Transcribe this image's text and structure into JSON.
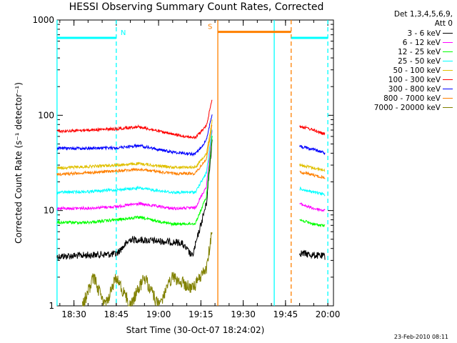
{
  "title": "HESSI Observing Summary Count Rates, Corrected",
  "footer_timestamp": "23-Feb-2010 08:11",
  "legend": {
    "header_line1": "Det 1,3,4,5,6,9,",
    "header_line2": "Att 0"
  },
  "chart_data": {
    "type": "line",
    "title": "HESSI Observing Summary Count Rates, Corrected",
    "xlabel": "Start Time (30-Oct-07 18:24:02)",
    "ylabel": "Corrected Count Rate (s⁻¹ detector⁻¹)",
    "y_scale": "log",
    "ylim": [
      1,
      1000
    ],
    "xlim": [
      "18:24:02",
      "20:02"
    ],
    "x_ticks": [
      "18:30",
      "18:45",
      "19:00",
      "19:15",
      "19:30",
      "19:45",
      "20:00"
    ],
    "y_ticks": [
      "1",
      "10",
      "100",
      "1000"
    ],
    "grid": false,
    "legend_position": "right",
    "series": [
      {
        "name": "3 - 6 keV",
        "color": "#000000",
        "segments": [
          {
            "x": [
              "18:24",
              "18:45",
              "18:50",
              "19:08",
              "19:12",
              "19:17",
              "19:19"
            ],
            "y": [
              3.3,
              3.5,
              5.0,
              4.6,
              3.3,
              12,
              55
            ]
          },
          {
            "x": [
              "19:50",
              "19:55",
              "19:59"
            ],
            "y": [
              3.6,
              3.4,
              3.3
            ]
          }
        ]
      },
      {
        "name": "6 - 12 keV",
        "color": "#ff00ff",
        "segments": [
          {
            "x": [
              "18:24",
              "18:35",
              "18:45",
              "18:53",
              "19:05",
              "19:13",
              "19:17",
              "19:19"
            ],
            "y": [
              10.5,
              10.6,
              11,
              11.8,
              10.5,
              10.7,
              18,
              70
            ]
          },
          {
            "x": [
              "19:50",
              "19:55",
              "19:59"
            ],
            "y": [
              11.8,
              10.5,
              10
            ]
          }
        ]
      },
      {
        "name": "12 - 25 keV",
        "color": "#00ff00",
        "segments": [
          {
            "x": [
              "18:24",
              "18:35",
              "18:45",
              "18:53",
              "19:05",
              "19:13",
              "19:17",
              "19:19"
            ],
            "y": [
              7.5,
              7.5,
              8,
              8.5,
              7.2,
              7.3,
              14,
              62
            ]
          },
          {
            "x": [
              "19:50",
              "19:55",
              "19:59"
            ],
            "y": [
              8,
              7.2,
              6.9
            ]
          }
        ]
      },
      {
        "name": "25 - 50 keV",
        "color": "#00ffff",
        "segments": [
          {
            "x": [
              "18:24",
              "18:35",
              "18:45",
              "18:53",
              "19:05",
              "19:13",
              "19:17",
              "19:19"
            ],
            "y": [
              15.5,
              15.8,
              16.5,
              17.2,
              15.5,
              15.6,
              25,
              72
            ]
          },
          {
            "x": [
              "19:50",
              "19:55",
              "19:59"
            ],
            "y": [
              17,
              15.5,
              14.8
            ]
          }
        ]
      },
      {
        "name": "50 - 100 keV",
        "color": "#e0c000",
        "segments": [
          {
            "x": [
              "18:24",
              "18:35",
              "18:45",
              "18:53",
              "19:05",
              "19:13",
              "19:17",
              "19:19"
            ],
            "y": [
              28,
              29,
              30,
              31,
              28.5,
              28.5,
              40,
              88
            ]
          },
          {
            "x": [
              "19:50",
              "19:55",
              "19:59"
            ],
            "y": [
              30,
              28,
              26.5
            ]
          }
        ]
      },
      {
        "name": "100 - 300 keV",
        "color": "#ff0000",
        "segments": [
          {
            "x": [
              "18:24",
              "18:35",
              "18:45",
              "18:53",
              "19:05",
              "19:13",
              "19:17",
              "19:19"
            ],
            "y": [
              68,
              70,
              72,
              76,
              63,
              58,
              78,
              150
            ]
          },
          {
            "x": [
              "19:50",
              "19:55",
              "19:59"
            ],
            "y": [
              77,
              70,
              63
            ]
          }
        ]
      },
      {
        "name": "300 - 800 keV",
        "color": "#0000ff",
        "segments": [
          {
            "x": [
              "18:24",
              "18:35",
              "18:45",
              "18:53",
              "19:05",
              "19:13",
              "19:17",
              "19:19"
            ],
            "y": [
              45,
              45,
              45.5,
              48,
              41,
              39,
              55,
              105
            ]
          },
          {
            "x": [
              "19:50",
              "19:55",
              "19:59"
            ],
            "y": [
              47,
              44,
              40
            ]
          }
        ]
      },
      {
        "name": "800 - 7000 keV",
        "color": "#ff8000",
        "segments": [
          {
            "x": [
              "18:24",
              "18:35",
              "18:45",
              "18:53",
              "19:05",
              "19:13",
              "19:17",
              "19:19"
            ],
            "y": [
              24,
              25,
              26,
              27,
              24.5,
              24.5,
              35,
              80
            ]
          },
          {
            "x": [
              "19:50",
              "19:55",
              "19:59"
            ],
            "y": [
              25.5,
              23.5,
              22
            ]
          }
        ]
      },
      {
        "name": "7000 - 20000 keV",
        "color": "#808000",
        "segments": [
          {
            "x": [
              "18:33",
              "18:37",
              "18:41",
              "18:45",
              "18:50",
              "18:55",
              "19:00",
              "19:05",
              "19:12",
              "19:17",
              "19:19"
            ],
            "y": [
              1,
              2,
              1,
              2,
              1,
              2,
              1,
              2,
              1.5,
              2.5,
              6
            ]
          }
        ]
      }
    ],
    "annotations": [
      {
        "label": "N",
        "type": "night",
        "color": "#00ffff",
        "x_start": "18:24",
        "x_end": "18:45",
        "level": 650
      },
      {
        "label": "S",
        "type": "saa",
        "color": "#ff8000",
        "x_start": "19:21",
        "x_end": "19:47",
        "level": 750
      },
      {
        "label": "",
        "type": "night",
        "color": "#00ffff",
        "x_start": "19:47",
        "x_end": "20:00",
        "level": 650
      }
    ],
    "vertical_markers": [
      {
        "x": "18:24",
        "color": "#00ffff",
        "style": "solid"
      },
      {
        "x": "18:45",
        "color": "#00ffff",
        "style": "dashed"
      },
      {
        "x": "19:21",
        "color": "#ff8000",
        "style": "solid"
      },
      {
        "x": "19:41",
        "color": "#00ffff",
        "style": "solid"
      },
      {
        "x": "19:47",
        "color": "#ff8000",
        "style": "dashed"
      },
      {
        "x": "20:00",
        "color": "#00ffff",
        "style": "dashed"
      }
    ]
  }
}
